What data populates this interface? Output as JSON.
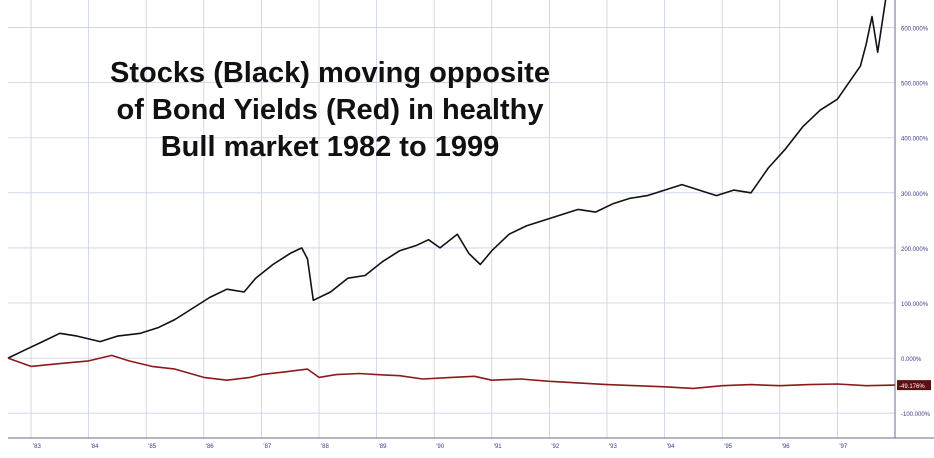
{
  "chart_data": {
    "type": "line",
    "annotation": [
      "Stocks (Black) moving opposite",
      "of Bond Yields (Red) in healthy",
      "Bull market 1982 to 1999"
    ],
    "x_ticks": [
      "'83",
      "'84",
      "'85",
      "'86",
      "'87",
      "'88",
      "'89",
      "'90",
      "'91",
      "'92",
      "'93",
      "'94",
      "'95",
      "'96",
      "'97"
    ],
    "y_ticks": [
      "600.000%",
      "500.000%",
      "400.000%",
      "300.000%",
      "200.000%",
      "100.000%",
      "0.000%",
      "-100.000%"
    ],
    "y_tick_values": [
      600,
      500,
      400,
      300,
      200,
      100,
      0,
      -100
    ],
    "ylim": [
      -145,
      650
    ],
    "xlim": [
      1982.6,
      1998.0
    ],
    "grid": true,
    "end_label": "-49.176%",
    "series": [
      {
        "color": "#111111",
        "x": [
          1982.6,
          1982.9,
          1983.2,
          1983.5,
          1983.8,
          1984.2,
          1984.5,
          1984.9,
          1985.2,
          1985.5,
          1985.8,
          1986.1,
          1986.4,
          1986.7,
          1986.9,
          1987.2,
          1987.5,
          1987.7,
          1987.8,
          1987.9,
          1988.2,
          1988.5,
          1988.8,
          1989.1,
          1989.4,
          1989.7,
          1989.9,
          1990.1,
          1990.4,
          1990.6,
          1990.8,
          1991.0,
          1991.3,
          1991.6,
          1991.9,
          1992.2,
          1992.5,
          1992.8,
          1993.1,
          1993.4,
          1993.7,
          1994.0,
          1994.3,
          1994.6,
          1994.9,
          1995.2,
          1995.5,
          1995.8,
          1996.1,
          1996.4,
          1996.7,
          1997.0,
          1997.2,
          1997.4,
          1997.5,
          1997.6,
          1997.7,
          1997.85
        ],
        "y": [
          0,
          15,
          30,
          45,
          40,
          30,
          40,
          45,
          55,
          70,
          90,
          110,
          125,
          120,
          145,
          170,
          190,
          200,
          180,
          105,
          120,
          145,
          150,
          175,
          195,
          205,
          215,
          200,
          225,
          190,
          170,
          195,
          225,
          240,
          250,
          260,
          270,
          265,
          280,
          290,
          295,
          305,
          315,
          305,
          295,
          305,
          300,
          345,
          380,
          420,
          450,
          470,
          500,
          530,
          570,
          620,
          555,
          660
        ]
      },
      {
        "color": "#8b1a1a",
        "x": [
          1982.6,
          1983.0,
          1983.5,
          1984.0,
          1984.4,
          1984.7,
          1985.1,
          1985.5,
          1986.0,
          1986.4,
          1986.8,
          1987.0,
          1987.4,
          1987.8,
          1988.0,
          1988.3,
          1988.7,
          1989.0,
          1989.4,
          1989.8,
          1990.3,
          1990.7,
          1991.0,
          1991.5,
          1992.0,
          1992.5,
          1993.0,
          1993.5,
          1994.0,
          1994.5,
          1995.0,
          1995.5,
          1996.0,
          1996.5,
          1997.0,
          1997.5,
          1998.0
        ],
        "y": [
          0,
          -15,
          -10,
          -5,
          5,
          -5,
          -15,
          -20,
          -35,
          -40,
          -35,
          -30,
          -25,
          -20,
          -35,
          -30,
          -28,
          -30,
          -32,
          -38,
          -35,
          -33,
          -40,
          -38,
          -42,
          -45,
          -48,
          -50,
          -52,
          -55,
          -50,
          -48,
          -50,
          -48,
          -47,
          -50,
          -49
        ]
      }
    ]
  }
}
